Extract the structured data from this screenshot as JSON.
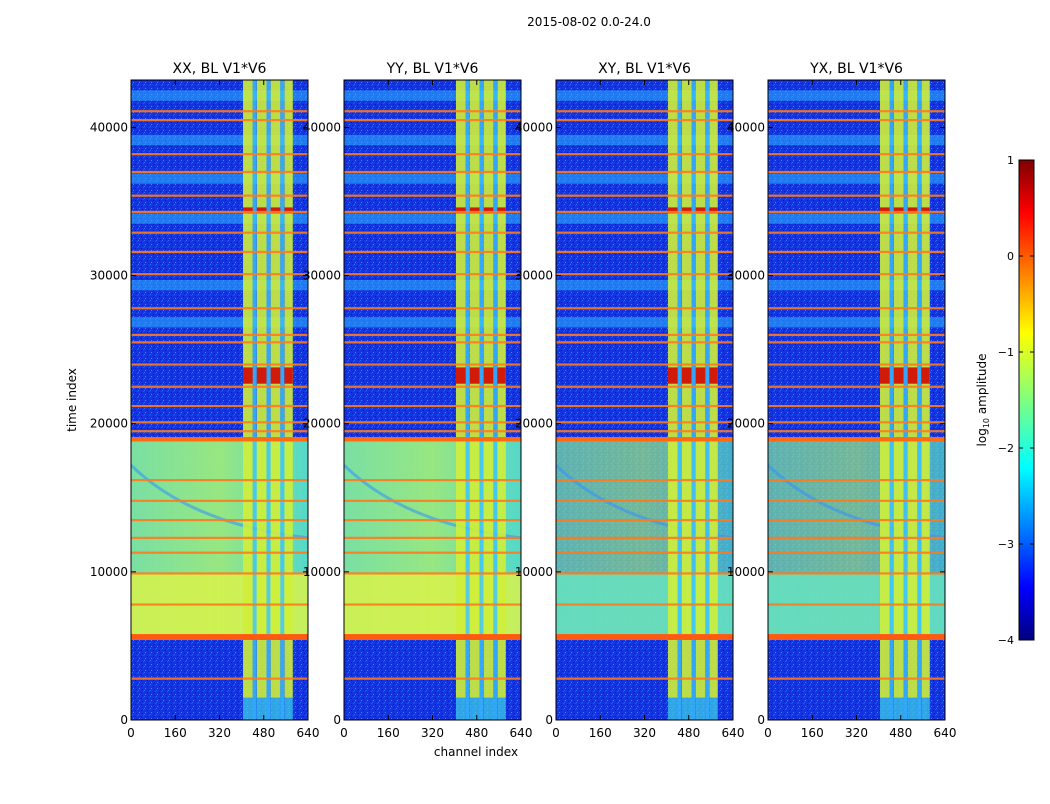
{
  "chart_data": {
    "type": "heatmap",
    "suptitle": "2015-08-02 0.0-24.0",
    "panels": [
      {
        "title": "XX, BL V1*V6",
        "pol": "XX"
      },
      {
        "title": "YY, BL V1*V6",
        "pol": "YY"
      },
      {
        "title": "XY, BL V1*V6",
        "pol": "XY"
      },
      {
        "title": "YX, BL V1*V6",
        "pol": "YX"
      }
    ],
    "xlabel": "channel index",
    "ylabel": "time index",
    "xlim": [
      0,
      640
    ],
    "ylim": [
      0,
      43200
    ],
    "xticks": [
      0,
      160,
      320,
      480,
      640
    ],
    "yticks": [
      0,
      10000,
      20000,
      30000,
      40000
    ],
    "colorbar": {
      "label": "log10 amplitude",
      "label_main": "log",
      "label_sub": "10",
      "label_tail": " amplitude",
      "range": [
        -4,
        1
      ],
      "ticks": [
        1,
        0,
        -1,
        -2,
        -3,
        -4
      ],
      "tick_labels": [
        "1",
        "0",
        "−1",
        "−2",
        "−3",
        "−4"
      ],
      "colormap": "jet"
    },
    "features": {
      "rfi_channel_range": [
        405,
        585
      ],
      "rfi_channel_bands": [
        [
          405,
          440
        ],
        [
          455,
          490
        ],
        [
          505,
          540
        ],
        [
          555,
          585
        ]
      ],
      "bright_time_bands": [
        2800,
        5500,
        5700,
        7800,
        9900,
        11300,
        12300,
        13500,
        14800,
        16200,
        18900,
        19500,
        20100,
        21200,
        22500,
        24000,
        25500,
        26000,
        27800,
        30100,
        31600,
        32900,
        34300,
        35400,
        37000,
        38200,
        40500,
        41100
      ],
      "bright_time_band_color": "#ff7a1c",
      "quiet_color": "#1228d8",
      "diffuse_color": "#6fe6a8",
      "diffuse_time_range": [
        5500,
        19000
      ],
      "strong_rfi_time_ranges": [
        [
          22700,
          23800
        ],
        [
          34200,
          34600
        ]
      ]
    }
  }
}
